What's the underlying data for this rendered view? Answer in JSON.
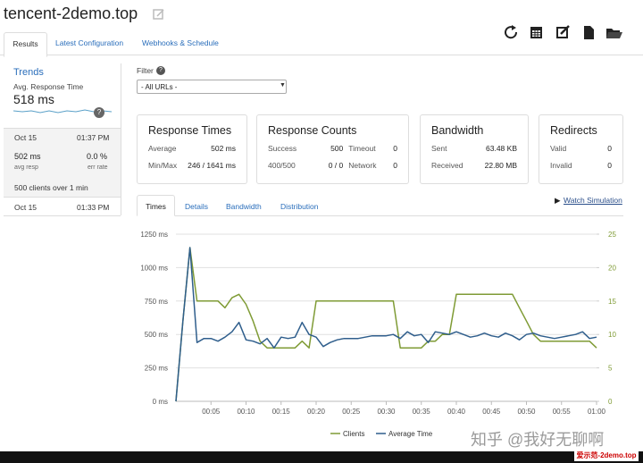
{
  "header": {
    "title": "tencent-2demo.top",
    "tabs": [
      "Results",
      "Latest Configuration",
      "Webhooks & Schedule"
    ]
  },
  "sidebar": {
    "heading": "Trends",
    "metric_label": "Avg. Response Time",
    "metric_value": "518 ms",
    "help": "?",
    "runs": [
      {
        "date": "Oct 15",
        "time": "01:37 PM",
        "resp": "502 ms",
        "resp_label": "avg resp",
        "err": "0.0 %",
        "err_label": "err rate",
        "summary": "500 clients over 1 min"
      },
      {
        "date": "Oct 15",
        "time": "01:33 PM"
      }
    ]
  },
  "filter": {
    "label": "Filter",
    "help": "?",
    "select": "- All URLs -"
  },
  "cards": [
    {
      "title": "Response Times",
      "rows": [
        [
          "Average",
          "502 ms"
        ],
        [
          "Min/Max",
          "246 / 1641 ms"
        ]
      ]
    },
    {
      "title": "Response Counts",
      "rows": [
        [
          "Success",
          "500",
          "Timeout",
          "0"
        ],
        [
          "400/500",
          "0 / 0",
          "Network",
          "0"
        ]
      ]
    },
    {
      "title": "Bandwidth",
      "rows": [
        [
          "Sent",
          "63.48 KB"
        ],
        [
          "Received",
          "22.80 MB"
        ]
      ]
    },
    {
      "title": "Redirects",
      "rows": [
        [
          "Valid",
          "0"
        ],
        [
          "Invalid",
          "0"
        ]
      ]
    }
  ],
  "chart_tabs": [
    "Times",
    "Details",
    "Bandwidth",
    "Distribution"
  ],
  "watch": "Watch Simulation",
  "chart_data": {
    "type": "line",
    "x": [
      0,
      1,
      2,
      3,
      4,
      5,
      6,
      7,
      8,
      9,
      10,
      11,
      12,
      13,
      14,
      15,
      16,
      17,
      18,
      19,
      20,
      21,
      22,
      23,
      24,
      25,
      26,
      27,
      28,
      29,
      30,
      31,
      32,
      33,
      34,
      35,
      36,
      37,
      38,
      39,
      40,
      41,
      42,
      43,
      44,
      45,
      46,
      47,
      48,
      49,
      50,
      51,
      52,
      53,
      54,
      55,
      56,
      57,
      58,
      59,
      60
    ],
    "series": [
      {
        "name": "Clients",
        "color": "#7f9b35",
        "axis": "y2",
        "values": [
          0,
          12,
          23,
          15,
          15,
          15,
          15,
          14,
          15.5,
          16,
          14.5,
          12,
          9,
          8,
          8,
          8,
          8,
          8,
          9,
          8,
          15,
          15,
          15,
          15,
          15,
          15,
          15,
          15,
          15,
          15,
          15,
          15,
          8,
          8,
          8,
          8,
          9,
          9,
          10,
          10,
          16,
          16,
          16,
          16,
          16,
          16,
          16,
          16,
          16,
          14,
          12,
          10,
          9,
          9,
          9,
          9,
          9,
          9,
          9,
          9,
          8
        ]
      },
      {
        "name": "Average Time",
        "color": "#2f5e8c",
        "values": [
          0,
          600,
          1150,
          440,
          470,
          470,
          450,
          480,
          520,
          590,
          460,
          450,
          430,
          470,
          400,
          480,
          470,
          480,
          590,
          500,
          480,
          410,
          440,
          460,
          470,
          470,
          470,
          480,
          490,
          490,
          490,
          500,
          470,
          520,
          490,
          500,
          440,
          520,
          510,
          500,
          520,
          500,
          480,
          490,
          510,
          490,
          480,
          510,
          490,
          460,
          500,
          510,
          490,
          480,
          470,
          480,
          490,
          500,
          520,
          470,
          480
        ]
      }
    ],
    "xlim": [
      0,
      60
    ],
    "xticks": [
      {
        "value": 5,
        "label": "00:05"
      },
      {
        "value": 10,
        "label": "00:10"
      },
      {
        "value": 15,
        "label": "00:15"
      },
      {
        "value": 20,
        "label": "00:20"
      },
      {
        "value": 25,
        "label": "00:25"
      },
      {
        "value": 30,
        "label": "00:30"
      },
      {
        "value": 35,
        "label": "00:35"
      },
      {
        "value": 40,
        "label": "00:40"
      },
      {
        "value": 45,
        "label": "00:45"
      },
      {
        "value": 50,
        "label": "00:50"
      },
      {
        "value": 55,
        "label": "00:55"
      },
      {
        "value": 60,
        "label": "01:00"
      }
    ],
    "ylim": [
      0,
      1250
    ],
    "yticks": [
      {
        "value": 0,
        "label": "0 ms"
      },
      {
        "value": 250,
        "label": "250 ms"
      },
      {
        "value": 500,
        "label": "500 ms"
      },
      {
        "value": 750,
        "label": "750 ms"
      },
      {
        "value": 1000,
        "label": "1000 ms"
      },
      {
        "value": 1250,
        "label": "1250 ms"
      }
    ],
    "y2lim": [
      0,
      25
    ],
    "y2ticks": [
      0,
      5,
      10,
      15,
      20,
      25
    ],
    "grid": true
  },
  "watermark": [
    "知乎 @我好无聊啊",
    "爱示范-2demo.top"
  ]
}
